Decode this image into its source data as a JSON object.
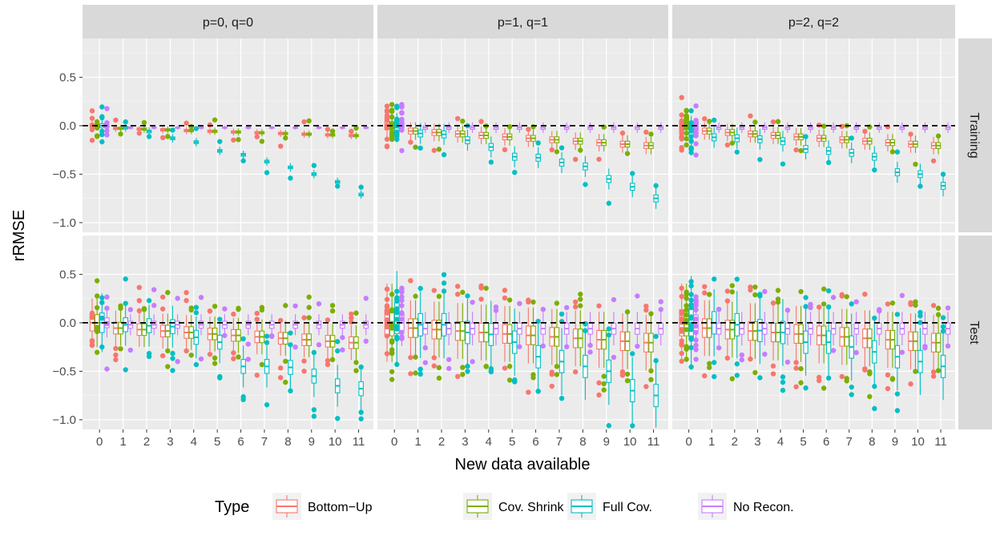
{
  "chart_data": {
    "type": "boxplot",
    "xlabel": "New data available",
    "ylabel": "rRMSE",
    "x_categories": [
      "0",
      "1",
      "2",
      "3",
      "4",
      "5",
      "6",
      "7",
      "8",
      "9",
      "10",
      "11"
    ],
    "y_ticks": [
      0.5,
      0.0,
      -0.5,
      -1.0
    ],
    "y_tick_labels": [
      "0.5",
      "0.0",
      "−0.5",
      "−1.0"
    ],
    "ylim": [
      -1.1,
      0.9
    ],
    "reference_line": 0,
    "facet_columns": [
      "p=0, q=0",
      "p=1, q=1",
      "p=2, q=2"
    ],
    "facet_rows": [
      "Training",
      "Test"
    ],
    "legend": {
      "title": "Type",
      "position": "bottom",
      "entries": [
        {
          "label": "Bottom−Up",
          "color": "#F8766D"
        },
        {
          "label": "Cov. Shrink",
          "color": "#7CAE00"
        },
        {
          "label": "Full Cov.",
          "color": "#00BFC4"
        },
        {
          "label": "No Recon.",
          "color": "#C77CFF"
        }
      ]
    },
    "series_colors": [
      "#F8766D",
      "#7CAE00",
      "#00BFC4",
      "#C77CFF"
    ],
    "full_cov_median_trend": {
      "Training|p=0, q=0": [
        0.0,
        -0.02,
        -0.06,
        -0.13,
        -0.17,
        -0.26,
        -0.3,
        -0.37,
        -0.43,
        -0.5,
        -0.58,
        -0.71
      ],
      "Training|p=1, q=1": [
        -0.02,
        -0.08,
        -0.09,
        -0.15,
        -0.22,
        -0.32,
        -0.33,
        -0.38,
        -0.42,
        -0.55,
        -0.63,
        -0.75
      ],
      "Training|p=2, q=2": [
        -0.05,
        -0.12,
        -0.13,
        -0.14,
        -0.16,
        -0.24,
        -0.26,
        -0.28,
        -0.32,
        -0.48,
        -0.5,
        -0.62
      ],
      "Test|p=0, q=0": [
        0.0,
        -0.02,
        -0.03,
        -0.04,
        -0.15,
        -0.2,
        -0.45,
        -0.45,
        -0.46,
        -0.55,
        -0.65,
        -0.68
      ],
      "Test|p=1, q=1": [
        0.05,
        -0.02,
        -0.02,
        -0.1,
        -0.12,
        -0.2,
        -0.35,
        -0.4,
        -0.45,
        -0.5,
        -0.7,
        -0.75
      ],
      "Test|p=2, q=2": [
        0.0,
        0.0,
        -0.02,
        -0.08,
        -0.1,
        -0.2,
        -0.2,
        -0.25,
        -0.3,
        -0.35,
        -0.4,
        -0.45
      ]
    }
  }
}
